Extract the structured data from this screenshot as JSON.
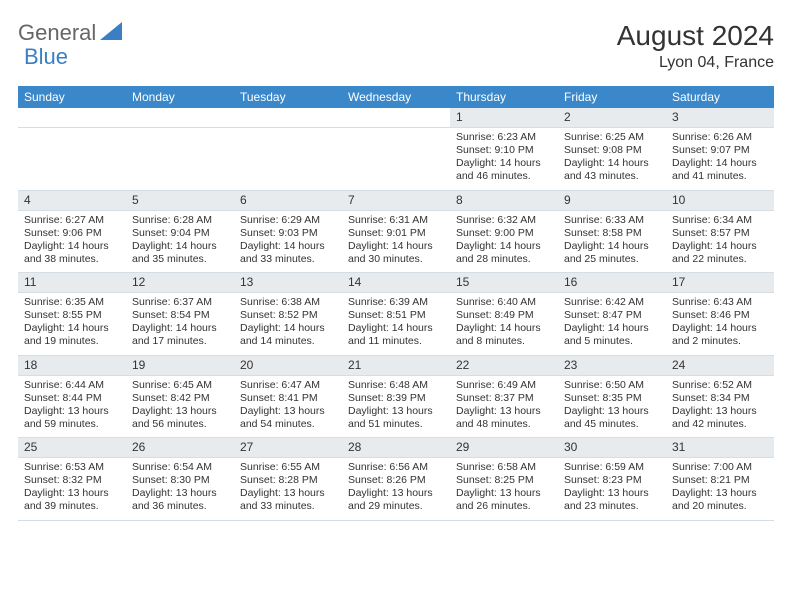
{
  "brand": {
    "part1": "General",
    "part2": "Blue"
  },
  "title": "August 2024",
  "location": "Lyon 04, France",
  "colors": {
    "header_bg": "#3a87c9",
    "header_text": "#ffffff",
    "daynum_bg": "#e8ebee",
    "border": "#d5dde5",
    "brand_blue": "#3a7fc4"
  },
  "weekdays": [
    "Sunday",
    "Monday",
    "Tuesday",
    "Wednesday",
    "Thursday",
    "Friday",
    "Saturday"
  ],
  "weeks": [
    [
      null,
      null,
      null,
      null,
      {
        "n": "1",
        "sr": "6:23 AM",
        "ss": "9:10 PM",
        "dl": "14 hours and 46 minutes."
      },
      {
        "n": "2",
        "sr": "6:25 AM",
        "ss": "9:08 PM",
        "dl": "14 hours and 43 minutes."
      },
      {
        "n": "3",
        "sr": "6:26 AM",
        "ss": "9:07 PM",
        "dl": "14 hours and 41 minutes."
      }
    ],
    [
      {
        "n": "4",
        "sr": "6:27 AM",
        "ss": "9:06 PM",
        "dl": "14 hours and 38 minutes."
      },
      {
        "n": "5",
        "sr": "6:28 AM",
        "ss": "9:04 PM",
        "dl": "14 hours and 35 minutes."
      },
      {
        "n": "6",
        "sr": "6:29 AM",
        "ss": "9:03 PM",
        "dl": "14 hours and 33 minutes."
      },
      {
        "n": "7",
        "sr": "6:31 AM",
        "ss": "9:01 PM",
        "dl": "14 hours and 30 minutes."
      },
      {
        "n": "8",
        "sr": "6:32 AM",
        "ss": "9:00 PM",
        "dl": "14 hours and 28 minutes."
      },
      {
        "n": "9",
        "sr": "6:33 AM",
        "ss": "8:58 PM",
        "dl": "14 hours and 25 minutes."
      },
      {
        "n": "10",
        "sr": "6:34 AM",
        "ss": "8:57 PM",
        "dl": "14 hours and 22 minutes."
      }
    ],
    [
      {
        "n": "11",
        "sr": "6:35 AM",
        "ss": "8:55 PM",
        "dl": "14 hours and 19 minutes."
      },
      {
        "n": "12",
        "sr": "6:37 AM",
        "ss": "8:54 PM",
        "dl": "14 hours and 17 minutes."
      },
      {
        "n": "13",
        "sr": "6:38 AM",
        "ss": "8:52 PM",
        "dl": "14 hours and 14 minutes."
      },
      {
        "n": "14",
        "sr": "6:39 AM",
        "ss": "8:51 PM",
        "dl": "14 hours and 11 minutes."
      },
      {
        "n": "15",
        "sr": "6:40 AM",
        "ss": "8:49 PM",
        "dl": "14 hours and 8 minutes."
      },
      {
        "n": "16",
        "sr": "6:42 AM",
        "ss": "8:47 PM",
        "dl": "14 hours and 5 minutes."
      },
      {
        "n": "17",
        "sr": "6:43 AM",
        "ss": "8:46 PM",
        "dl": "14 hours and 2 minutes."
      }
    ],
    [
      {
        "n": "18",
        "sr": "6:44 AM",
        "ss": "8:44 PM",
        "dl": "13 hours and 59 minutes."
      },
      {
        "n": "19",
        "sr": "6:45 AM",
        "ss": "8:42 PM",
        "dl": "13 hours and 56 minutes."
      },
      {
        "n": "20",
        "sr": "6:47 AM",
        "ss": "8:41 PM",
        "dl": "13 hours and 54 minutes."
      },
      {
        "n": "21",
        "sr": "6:48 AM",
        "ss": "8:39 PM",
        "dl": "13 hours and 51 minutes."
      },
      {
        "n": "22",
        "sr": "6:49 AM",
        "ss": "8:37 PM",
        "dl": "13 hours and 48 minutes."
      },
      {
        "n": "23",
        "sr": "6:50 AM",
        "ss": "8:35 PM",
        "dl": "13 hours and 45 minutes."
      },
      {
        "n": "24",
        "sr": "6:52 AM",
        "ss": "8:34 PM",
        "dl": "13 hours and 42 minutes."
      }
    ],
    [
      {
        "n": "25",
        "sr": "6:53 AM",
        "ss": "8:32 PM",
        "dl": "13 hours and 39 minutes."
      },
      {
        "n": "26",
        "sr": "6:54 AM",
        "ss": "8:30 PM",
        "dl": "13 hours and 36 minutes."
      },
      {
        "n": "27",
        "sr": "6:55 AM",
        "ss": "8:28 PM",
        "dl": "13 hours and 33 minutes."
      },
      {
        "n": "28",
        "sr": "6:56 AM",
        "ss": "8:26 PM",
        "dl": "13 hours and 29 minutes."
      },
      {
        "n": "29",
        "sr": "6:58 AM",
        "ss": "8:25 PM",
        "dl": "13 hours and 26 minutes."
      },
      {
        "n": "30",
        "sr": "6:59 AM",
        "ss": "8:23 PM",
        "dl": "13 hours and 23 minutes."
      },
      {
        "n": "31",
        "sr": "7:00 AM",
        "ss": "8:21 PM",
        "dl": "13 hours and 20 minutes."
      }
    ]
  ],
  "labels": {
    "sunrise": "Sunrise: ",
    "sunset": "Sunset: ",
    "daylight": "Daylight: "
  }
}
